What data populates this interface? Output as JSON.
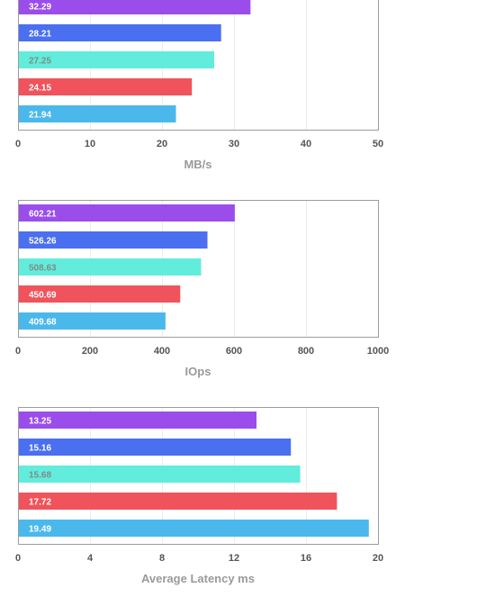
{
  "colors": {
    "purple": "#9b4deb",
    "blue": "#4a6ff0",
    "teal": "#62ecdb",
    "red": "#f0535b",
    "sky": "#4bb8ec",
    "frame": "#9c9c9c",
    "grid": "#ececec",
    "label_light": "#ffffff",
    "label_on_teal": "#7f8c89"
  },
  "chart_data": [
    {
      "type": "bar",
      "orientation": "horizontal",
      "title": "",
      "xlabel": "MB/s",
      "ylabel": "",
      "xlim": [
        0,
        50
      ],
      "ticks": [
        "0",
        "10",
        "20",
        "30",
        "40",
        "50"
      ],
      "grid": true,
      "legend": "none",
      "bars": [
        {
          "value": 32.29,
          "label": "32.29",
          "color": "#9b4deb"
        },
        {
          "value": 28.21,
          "label": "28.21",
          "color": "#4a6ff0"
        },
        {
          "value": 27.25,
          "label": "27.25",
          "color": "#62ecdb"
        },
        {
          "value": 24.15,
          "label": "24.15",
          "color": "#f0535b"
        },
        {
          "value": 21.94,
          "label": "21.94",
          "color": "#4bb8ec"
        }
      ]
    },
    {
      "type": "bar",
      "orientation": "horizontal",
      "title": "",
      "xlabel": "IOps",
      "ylabel": "",
      "xlim": [
        0,
        1000
      ],
      "ticks": [
        "0",
        "200",
        "400",
        "600",
        "800",
        "1000"
      ],
      "grid": true,
      "legend": "none",
      "bars": [
        {
          "value": 602.21,
          "label": "602.21",
          "color": "#9b4deb"
        },
        {
          "value": 526.26,
          "label": "526.26",
          "color": "#4a6ff0"
        },
        {
          "value": 508.63,
          "label": "508.63",
          "color": "#62ecdb"
        },
        {
          "value": 450.69,
          "label": "450.69",
          "color": "#f0535b"
        },
        {
          "value": 409.68,
          "label": "409.68",
          "color": "#4bb8ec"
        }
      ]
    },
    {
      "type": "bar",
      "orientation": "horizontal",
      "title": "",
      "xlabel": "Average Latency ms",
      "ylabel": "",
      "xlim": [
        0,
        20
      ],
      "ticks": [
        "0",
        "4",
        "8",
        "12",
        "16",
        "20"
      ],
      "grid": true,
      "legend": "none",
      "bars": [
        {
          "value": 13.25,
          "label": "13.25",
          "color": "#9b4deb"
        },
        {
          "value": 15.16,
          "label": "15.16",
          "color": "#4a6ff0"
        },
        {
          "value": 15.68,
          "label": "15.68",
          "color": "#62ecdb"
        },
        {
          "value": 17.72,
          "label": "17.72",
          "color": "#f0535b"
        },
        {
          "value": 19.49,
          "label": "19.49",
          "color": "#4bb8ec"
        }
      ]
    }
  ]
}
